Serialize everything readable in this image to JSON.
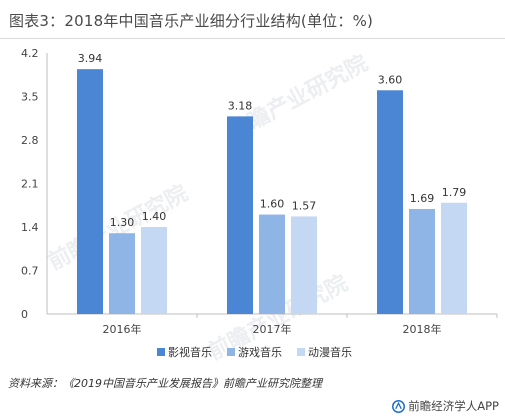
{
  "title": "图表3：2018年中国音乐产业细分行业结构(单位：%)",
  "source": "资料来源：《2019中国音乐产业发展报告》前瞻产业研究院整理",
  "brand": "前瞻经济学人APP",
  "watermark": "前瞻产业研究院",
  "chart_data": {
    "type": "bar",
    "categories": [
      "2016年",
      "2017年",
      "2018年"
    ],
    "series": [
      {
        "name": "影视音乐",
        "values": [
          3.94,
          3.18,
          3.6
        ],
        "color": "#4a86d4"
      },
      {
        "name": "游戏音乐",
        "values": [
          1.3,
          1.6,
          1.69
        ],
        "color": "#8fb4e6"
      },
      {
        "name": "动漫音乐",
        "values": [
          1.4,
          1.57,
          1.79
        ],
        "color": "#c5d8f3"
      }
    ],
    "value_labels": [
      [
        "3.94",
        "3.18",
        "3.60"
      ],
      [
        "1.30",
        "1.60",
        "1.69"
      ],
      [
        "1.40",
        "1.57",
        "1.79"
      ]
    ],
    "yticks": [
      "0",
      "0.7",
      "1.4",
      "2.1",
      "2.8",
      "3.5",
      "4.2"
    ],
    "ylim": [
      0,
      4.2
    ],
    "grid": false,
    "legend_position": "bottom"
  }
}
